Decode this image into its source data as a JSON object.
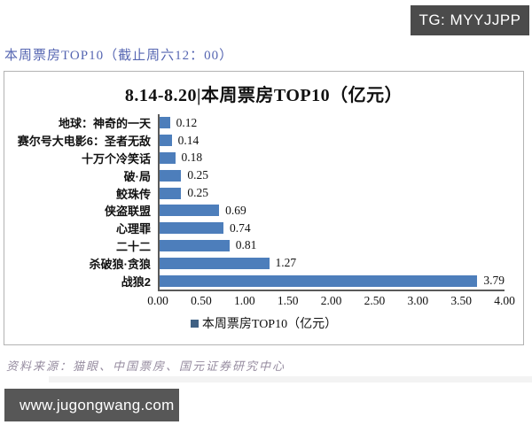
{
  "watermark": {
    "label": "TG: MYYJJPP"
  },
  "page_header": {
    "title": "本周票房TOP10（截止周六12：00）",
    "title_color": "#5666b2"
  },
  "chart_data": {
    "type": "bar",
    "orientation": "horizontal",
    "title": "8.14-8.20|本周票房TOP10（亿元）",
    "categories_order": "top-to-bottom",
    "categories": [
      "地球：神奇的一天",
      "赛尔号大电影6：圣者无敌",
      "十万个冷笑话",
      "破·局",
      "鲛珠传",
      "侠盗联盟",
      "心理罪",
      "二十二",
      "杀破狼·贪狼",
      "战狼2"
    ],
    "values": [
      0.12,
      0.14,
      0.18,
      0.25,
      0.25,
      0.69,
      0.74,
      0.81,
      1.27,
      3.79
    ],
    "value_labels": [
      "0.12",
      "0.14",
      "0.18",
      "0.25",
      "0.25",
      "0.69",
      "0.74",
      "0.81",
      "1.27",
      "3.79"
    ],
    "xlim": [
      0,
      4
    ],
    "x_ticks": [
      "0.00",
      "0.50",
      "1.00",
      "1.50",
      "2.00",
      "2.50",
      "3.00",
      "3.50",
      "4.00"
    ],
    "xlabel": "",
    "ylabel": "",
    "grid": false,
    "legend": {
      "label": "本周票房TOP10（亿元）",
      "position": "bottom",
      "marker_color": "#3f6083"
    },
    "bar_color": "#4d7ebb"
  },
  "footer": {
    "source": "资料来源：猫眼、中国票房、国元证券研究中心",
    "source_color": "#968ca0",
    "website": "www.jugongwang.com"
  }
}
